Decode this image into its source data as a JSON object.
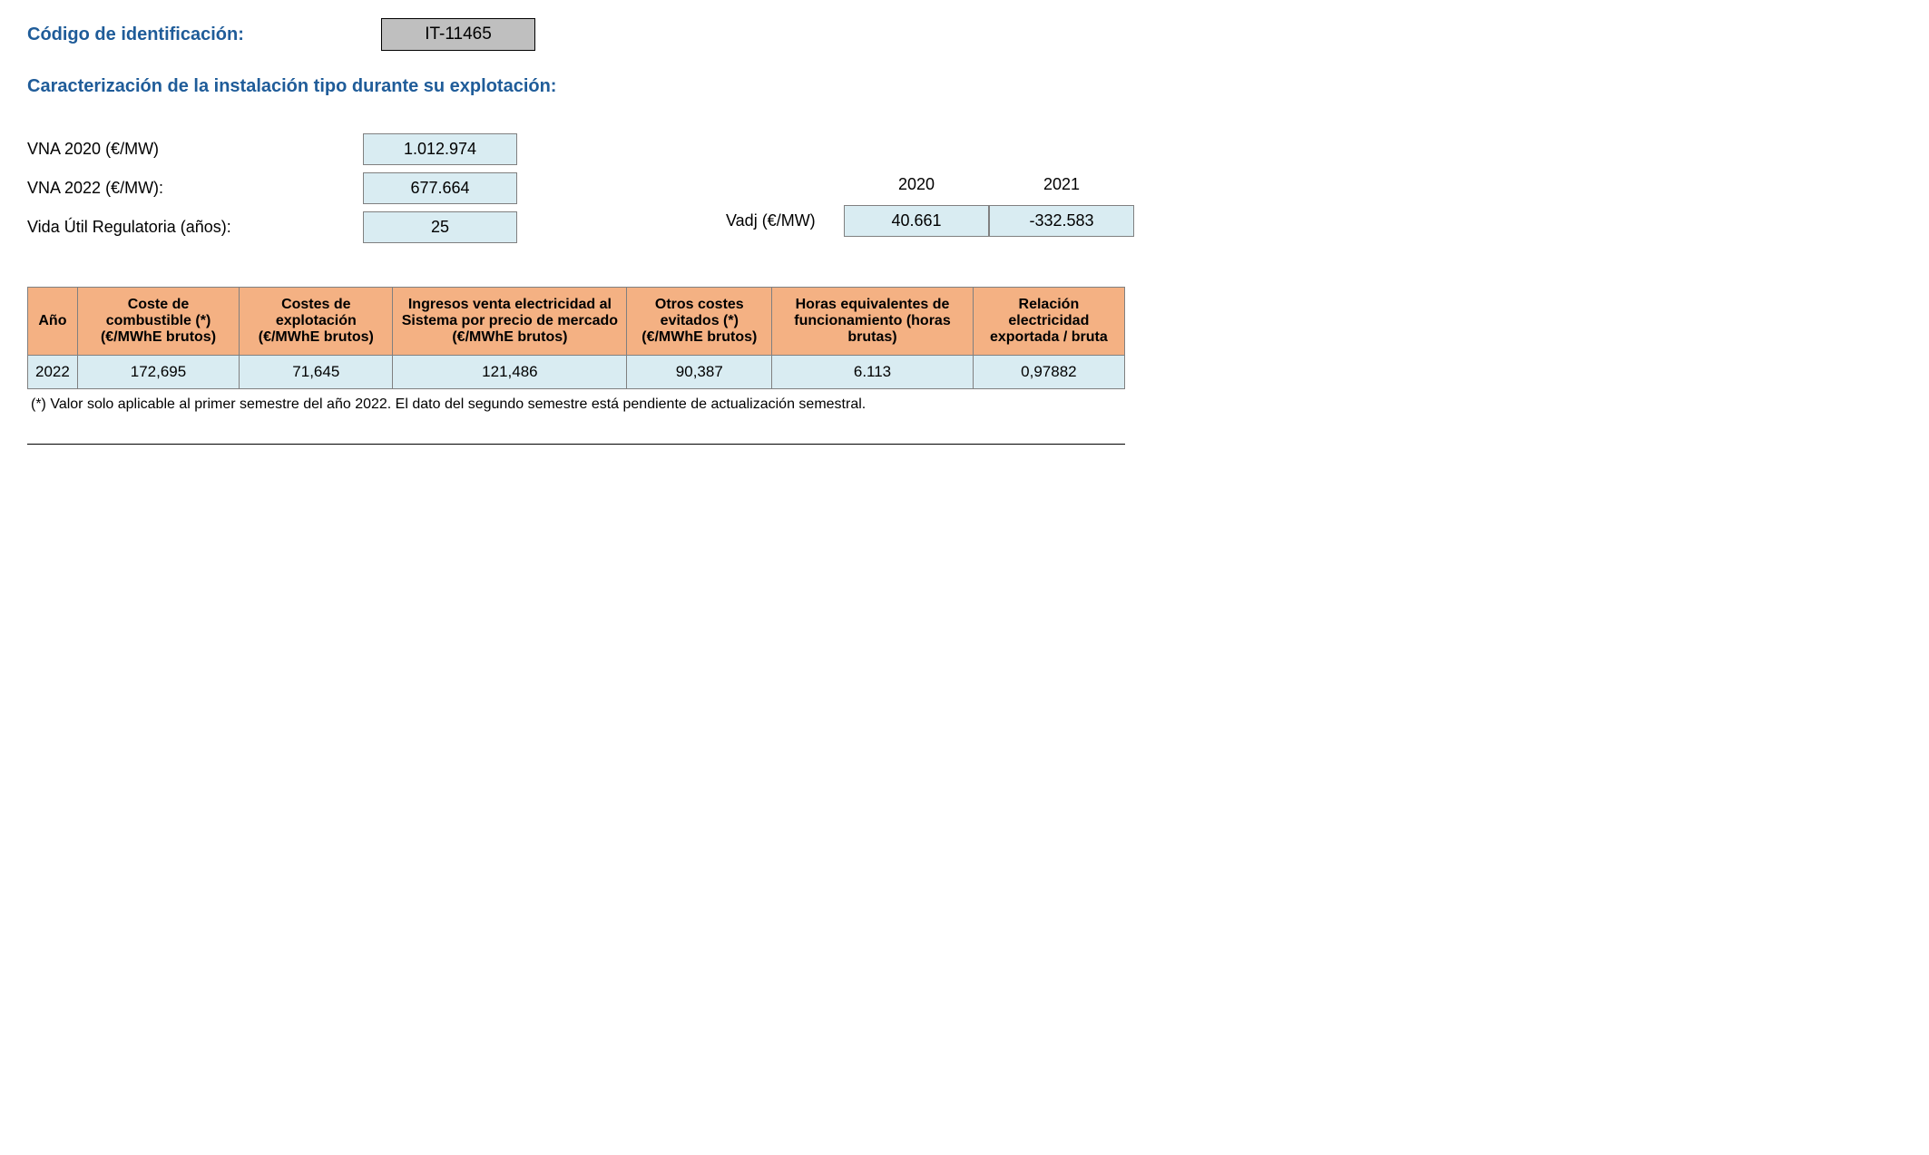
{
  "header": {
    "code_label": "Código de identificación:",
    "code_value": "IT-11465"
  },
  "subtitle": "Caracterización de la instalación tipo durante su explotación:",
  "params": {
    "vna2020_label": "VNA 2020 (€/MW)",
    "vna2020_value": "1.012.974",
    "vna2022_label": "VNA 2022 (€/MW):",
    "vna2022_value": "677.664",
    "vida_label": "Vida Útil Regulatoria (años):",
    "vida_value": "25"
  },
  "vadj": {
    "label": "Vadj (€/MW)",
    "year1_header": "2020",
    "year2_header": "2021",
    "year1_value": "40.661",
    "year2_value": "-332.583"
  },
  "table": {
    "headers": {
      "col1": "Año",
      "col2": "Coste de combustible (*) (€/MWhE brutos)",
      "col3": "Costes de explotación (€/MWhE brutos)",
      "col4": "Ingresos venta electricidad al Sistema por precio de mercado (€/MWhE brutos)",
      "col5": "Otros costes evitados (*) (€/MWhE brutos)",
      "col6": "Horas equivalentes de funcionamiento (horas brutas)",
      "col7": "Relación electricidad exportada / bruta"
    },
    "row": {
      "c1": "2022",
      "c2": "172,695",
      "c3": "71,645",
      "c4": "121,486",
      "c5": "90,387",
      "c6": "6.113",
      "c7": "0,97882"
    }
  },
  "footnote": "(*) Valor solo aplicable al primer semestre del año 2022. El dato del segundo semestre está pendiente de actualización semestral.",
  "colors": {
    "title_color": "#1f5c99",
    "code_box_bg": "#bfbfbf",
    "param_value_bg": "#d9ecf2",
    "table_header_bg": "#f4b183",
    "table_cell_bg": "#d9ecf2",
    "border_color": "#808080"
  }
}
